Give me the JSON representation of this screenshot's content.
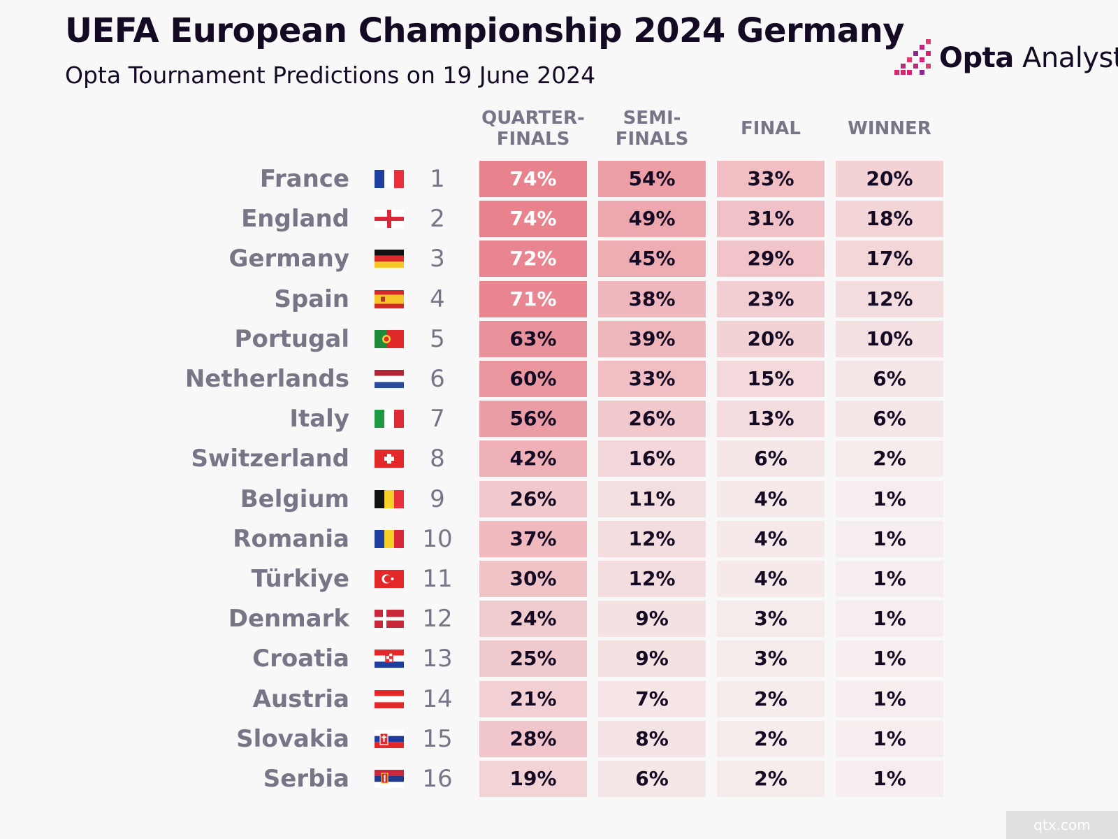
{
  "header": {
    "title": "UEFA European Championship 2024 Germany",
    "subtitle": "Opta Tournament Predictions on 19 June 2024"
  },
  "brand": {
    "name_bold": "Opta",
    "name_light": " Analyst",
    "icon": "opta-analyst-logo-icon"
  },
  "watermark": "qtx.com",
  "colors": {
    "background": "#f8f8f8",
    "text_dark": "#150a24",
    "text_grey": "#7a7586",
    "heat_low": "#f6efef",
    "heat_high": "#e8828d"
  },
  "chart_data": {
    "type": "table",
    "title": "UEFA European Championship 2024 Germany",
    "subtitle": "Opta Tournament Predictions on 19 June 2024",
    "columns": [
      {
        "key": "qf",
        "label": "QUARTER-\nFINALS"
      },
      {
        "key": "sf",
        "label": "SEMI-\nFINALS"
      },
      {
        "key": "final",
        "label": "FINAL"
      },
      {
        "key": "winner",
        "label": "WINNER"
      }
    ],
    "rows": [
      {
        "team": "France",
        "rank": "1",
        "flag": "france",
        "qf": "74%",
        "sf": "54%",
        "final": "33%",
        "winner": "20%"
      },
      {
        "team": "England",
        "rank": "2",
        "flag": "england",
        "qf": "74%",
        "sf": "49%",
        "final": "31%",
        "winner": "18%"
      },
      {
        "team": "Germany",
        "rank": "3",
        "flag": "germany",
        "qf": "72%",
        "sf": "45%",
        "final": "29%",
        "winner": "17%"
      },
      {
        "team": "Spain",
        "rank": "4",
        "flag": "spain",
        "qf": "71%",
        "sf": "38%",
        "final": "23%",
        "winner": "12%"
      },
      {
        "team": "Portugal",
        "rank": "5",
        "flag": "portugal",
        "qf": "63%",
        "sf": "39%",
        "final": "20%",
        "winner": "10%"
      },
      {
        "team": "Netherlands",
        "rank": "6",
        "flag": "netherlands",
        "qf": "60%",
        "sf": "33%",
        "final": "15%",
        "winner": "6%"
      },
      {
        "team": "Italy",
        "rank": "7",
        "flag": "italy",
        "qf": "56%",
        "sf": "26%",
        "final": "13%",
        "winner": "6%"
      },
      {
        "team": "Switzerland",
        "rank": "8",
        "flag": "switzerland",
        "qf": "42%",
        "sf": "16%",
        "final": "6%",
        "winner": "2%"
      },
      {
        "team": "Belgium",
        "rank": "9",
        "flag": "belgium",
        "qf": "26%",
        "sf": "11%",
        "final": "4%",
        "winner": "1%"
      },
      {
        "team": "Romania",
        "rank": "10",
        "flag": "romania",
        "qf": "37%",
        "sf": "12%",
        "final": "4%",
        "winner": "1%"
      },
      {
        "team": "Türkiye",
        "rank": "11",
        "flag": "turkiye",
        "qf": "30%",
        "sf": "12%",
        "final": "4%",
        "winner": "1%"
      },
      {
        "team": "Denmark",
        "rank": "12",
        "flag": "denmark",
        "qf": "24%",
        "sf": "9%",
        "final": "3%",
        "winner": "1%"
      },
      {
        "team": "Croatia",
        "rank": "13",
        "flag": "croatia",
        "qf": "25%",
        "sf": "9%",
        "final": "3%",
        "winner": "1%"
      },
      {
        "team": "Austria",
        "rank": "14",
        "flag": "austria",
        "qf": "21%",
        "sf": "7%",
        "final": "2%",
        "winner": "1%"
      },
      {
        "team": "Slovakia",
        "rank": "15",
        "flag": "slovakia",
        "qf": "28%",
        "sf": "8%",
        "final": "2%",
        "winner": "1%"
      },
      {
        "team": "Serbia",
        "rank": "16",
        "flag": "serbia",
        "qf": "19%",
        "sf": "6%",
        "final": "2%",
        "winner": "1%"
      }
    ]
  }
}
